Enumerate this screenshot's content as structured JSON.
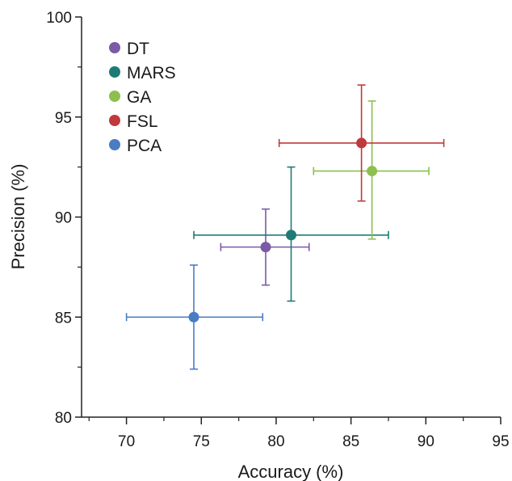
{
  "chart_data": {
    "type": "scatter",
    "xlabel": "Accuracy (%)",
    "ylabel": "Precision (%)",
    "xlim": [
      67,
      95
    ],
    "ylim": [
      80,
      100
    ],
    "x_ticks": [
      70,
      75,
      80,
      85,
      90,
      95
    ],
    "y_ticks": [
      80,
      85,
      90,
      95,
      100
    ],
    "x_tick_labels": [
      "70",
      "75",
      "80",
      "85",
      "90",
      "95"
    ],
    "y_tick_labels": [
      "80",
      "85",
      "90",
      "95",
      "100"
    ],
    "grid": false,
    "legend_position": "top-left",
    "series": [
      {
        "name": "DT",
        "color": "#7b5aa6",
        "x": 79.3,
        "y": 88.5,
        "xerr": [
          76.3,
          82.2
        ],
        "yerr": [
          86.6,
          90.4
        ]
      },
      {
        "name": "MARS",
        "color": "#1f7a75",
        "x": 81.0,
        "y": 89.1,
        "xerr": [
          74.5,
          87.5
        ],
        "yerr": [
          85.8,
          92.5
        ]
      },
      {
        "name": "GA",
        "color": "#8dbf4f",
        "x": 86.4,
        "y": 92.3,
        "xerr": [
          82.5,
          90.2
        ],
        "yerr": [
          88.9,
          95.8
        ]
      },
      {
        "name": "FSL",
        "color": "#c0393b",
        "x": 85.7,
        "y": 93.7,
        "xerr": [
          80.2,
          91.2
        ],
        "yerr": [
          90.8,
          96.6
        ]
      },
      {
        "name": "PCA",
        "color": "#4a7cc4",
        "x": 74.5,
        "y": 85.0,
        "xerr": [
          70.0,
          79.1
        ],
        "yerr": [
          82.4,
          87.6
        ]
      }
    ]
  }
}
